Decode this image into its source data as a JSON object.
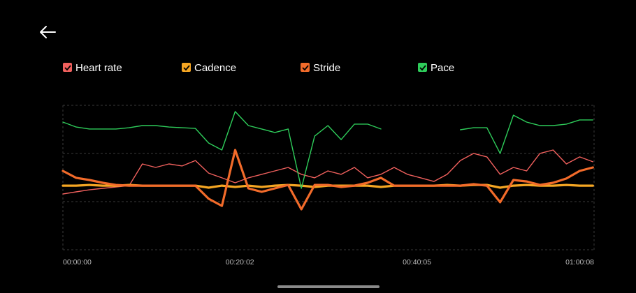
{
  "chart_data": {
    "type": "line",
    "x": [
      0,
      90,
      180,
      270,
      360,
      450,
      540,
      630,
      720,
      810,
      900,
      990,
      1080,
      1170,
      1260,
      1350,
      1440,
      1530,
      1620,
      1710,
      1800,
      1890,
      1980,
      2070,
      2160,
      2250,
      2340,
      2430,
      2520,
      2610,
      2700,
      2790,
      2880,
      2970,
      3060,
      3150,
      3240,
      3330,
      3420,
      3510,
      3600
    ],
    "xlim": [
      0,
      3608
    ],
    "xticks": [
      {
        "value": 0,
        "label": "00:00:00"
      },
      {
        "value": 1202,
        "label": "00:20:02"
      },
      {
        "value": 2405,
        "label": "00:40:05"
      },
      {
        "value": 3608,
        "label": "01:00:08"
      }
    ],
    "ylim": [
      0,
      100
    ],
    "series": [
      {
        "name": "Heart rate",
        "color": "#f0605d",
        "values": [
          38.6,
          40.1,
          41.5,
          42.5,
          43.5,
          44.4,
          59.4,
          57,
          59.4,
          58,
          61.8,
          53.1,
          49.8,
          46.4,
          49.8,
          52.2,
          54.6,
          57,
          52.2,
          49.8,
          54.6,
          52.2,
          57,
          49.8,
          52.2,
          57,
          52.2,
          49.8,
          47.3,
          52.2,
          61.8,
          66.7,
          64.3,
          52.2,
          57,
          54.6,
          66.7,
          69.1,
          59.4,
          64.3,
          60.9
        ]
      },
      {
        "name": "Cadence",
        "color": "#f5a623",
        "values": [
          44.4,
          44.4,
          44.9,
          44.4,
          44.4,
          44.9,
          44.4,
          44.4,
          44.4,
          44.4,
          44.4,
          43,
          44.4,
          43.5,
          44.4,
          43.5,
          44.4,
          44.9,
          44.4,
          43.5,
          44.4,
          44.4,
          44.4,
          44.4,
          43.5,
          44.4,
          44.4,
          44.4,
          44.4,
          44.9,
          44.4,
          44.9,
          44.9,
          43,
          44.4,
          44.9,
          44.4,
          44.4,
          44.9,
          44.4,
          44.4
        ]
      },
      {
        "name": "Stride",
        "color": "#f26b2a",
        "values": [
          54.6,
          49.8,
          48.3,
          46.4,
          44.9,
          44.4,
          44.4,
          44.4,
          44.4,
          44.4,
          44.4,
          35.3,
          30.4,
          69.1,
          42.5,
          40.1,
          42.5,
          44.9,
          28,
          44.9,
          44.9,
          43.5,
          44.4,
          46.4,
          49.8,
          44.4,
          44.4,
          44.4,
          44.4,
          44.4,
          44.4,
          45.4,
          44.4,
          32.9,
          48.3,
          47.3,
          44.9,
          46.4,
          49.3,
          54.6,
          57
        ]
      },
      {
        "name": "Pace",
        "color": "#2ecc5a",
        "values": [
          88.4,
          85,
          83.6,
          83.6,
          83.6,
          84.5,
          86,
          86,
          85,
          84.5,
          84,
          73.9,
          69.1,
          95.7,
          86,
          83.6,
          81.2,
          83.6,
          42.5,
          78.7,
          86,
          76.3,
          87,
          87,
          83.6,
          null,
          null,
          null,
          null,
          null,
          83.1,
          84.5,
          84.5,
          66.7,
          93.2,
          88.4,
          86,
          86,
          87,
          89.9,
          89.9
        ]
      }
    ]
  }
}
